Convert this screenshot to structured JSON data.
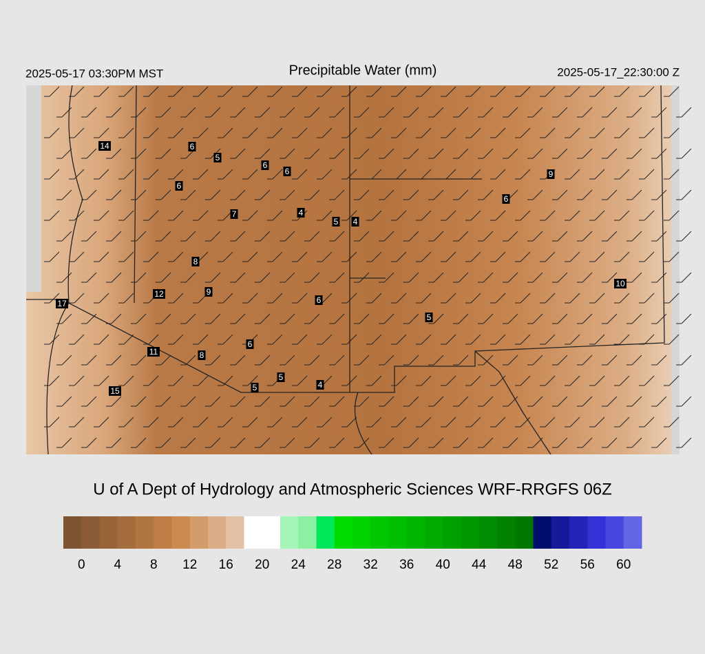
{
  "header": {
    "left": "2025-05-17 03:30PM MST",
    "title": "Precipitable Water (mm)",
    "right": "2025-05-17_22:30:00 Z"
  },
  "map": {
    "station_labels": [
      14,
      6,
      5,
      6,
      6,
      6,
      7,
      4,
      5,
      4,
      9,
      6,
      8,
      12,
      9,
      6,
      10,
      17,
      5,
      6,
      11,
      8,
      5,
      5,
      4,
      15
    ]
  },
  "footer": {
    "credit": "U of A Dept of Hydrology and Atmospheric Sciences WRF-RRGFS 06Z"
  },
  "colorbar": {
    "lim": [
      -2,
      62
    ],
    "colors": [
      "#7e5533",
      "#8b5c37",
      "#98643a",
      "#a56c3e",
      "#b17542",
      "#be7e46",
      "#cb8a4f",
      "#d39c6b",
      "#dbae88",
      "#e3c1a5",
      "#ffffff",
      "#ffffff",
      "#a6f5b8",
      "#8cf0a3",
      "#00e85a",
      "#00dc00",
      "#00d200",
      "#00c800",
      "#00be00",
      "#00b400",
      "#00aa00",
      "#00a000",
      "#009600",
      "#008c00",
      "#008200",
      "#007800",
      "#000f6e",
      "#16199a",
      "#2323b8",
      "#3232d6",
      "#4646e0",
      "#6464e6"
    ],
    "ticks": [
      0,
      4,
      8,
      12,
      16,
      20,
      24,
      28,
      32,
      36,
      40,
      44,
      48,
      52,
      56,
      60
    ]
  }
}
